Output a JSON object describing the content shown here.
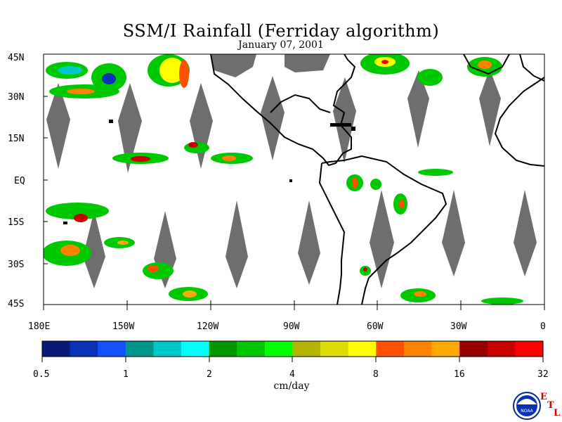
{
  "title": "SSM/I Rainfall (Ferriday algorithm)",
  "date": "January 07, 2001",
  "lat_labels": [
    "45N",
    "30N",
    "15N",
    "EQ",
    "15S",
    "30S",
    "45S"
  ],
  "lon_labels": [
    "180E",
    "150W",
    "120W",
    "90W",
    "60W",
    "30W",
    "0"
  ],
  "colorbar": {
    "colors": [
      "#0a1a78",
      "#0a32b4",
      "#1450ff",
      "#00968c",
      "#00c8c8",
      "#00ffff",
      "#009600",
      "#00c800",
      "#00ff00",
      "#b4b400",
      "#dcdc00",
      "#ffff00",
      "#ff5000",
      "#ff8200",
      "#ffaa00",
      "#960000",
      "#c80000",
      "#ff0000"
    ],
    "tick_labels": [
      "0.5",
      "1",
      "2",
      "4",
      "8",
      "16",
      "32"
    ],
    "unit": "cm/day"
  },
  "logo": {
    "text": "NOAA",
    "letters": [
      "E",
      "T",
      "L"
    ]
  }
}
